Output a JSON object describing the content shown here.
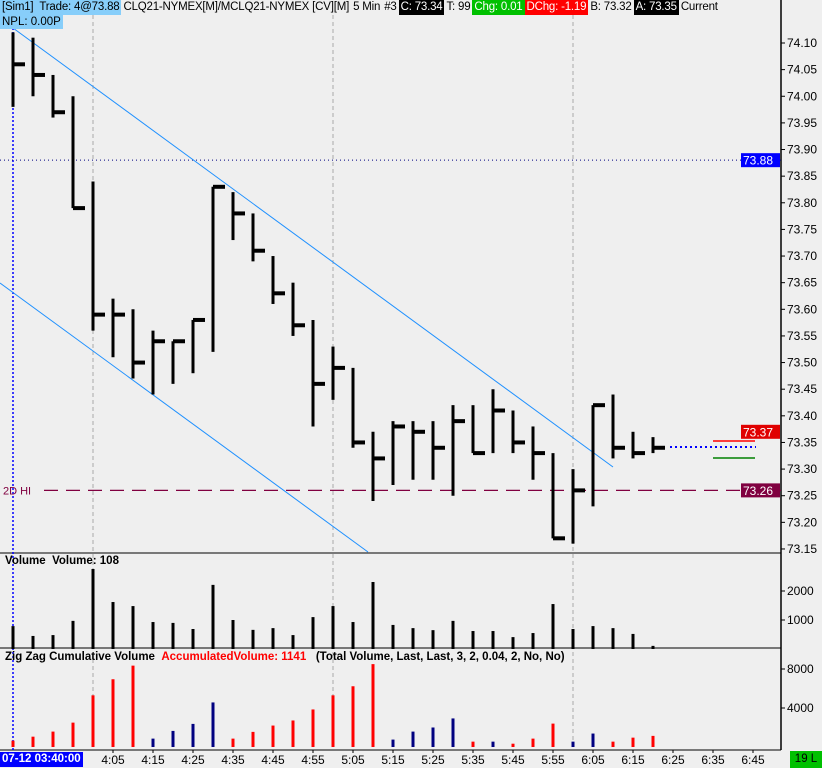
{
  "header": {
    "account": "[Sim1]",
    "trade": "Trade: 4@73.88",
    "symbol": "CLQ21-NYMEX[M]/MCLQ21-NYMEX [CV][M]",
    "interval": "5 Min",
    "bar_number": "#3",
    "close": "C: 73.34",
    "ticks": "T: 99",
    "change": "Chg: 0.01",
    "daily_change": "DChg: -1.19",
    "bid": "B: 73.32",
    "ask": "A: 73.35",
    "current": "Current",
    "npl": "NPL: 0.00P"
  },
  "colors": {
    "background": "#efefef",
    "bars": "#000000",
    "trendline": "#1e90ff",
    "zigzag_up": "#ff0000",
    "zigzag_down": "#000080",
    "accent_blue": "#87cefa"
  },
  "price_markers": [
    {
      "value": "73.88",
      "color": "#0000ff"
    },
    {
      "value": "73.37",
      "color": "#e00000"
    },
    {
      "value": "73.26",
      "color": "#800040",
      "line_label": "2D HI"
    }
  ],
  "volume_panel": {
    "title": "Volume",
    "value_label": "Volume: 108"
  },
  "zigzag_panel": {
    "title": "Zig Zag Cumulative Volume",
    "value_label": "AccumulatedVolume: 1141",
    "params": "(Total Volume, Last, Last, 3, 2, 0.04, 2, No, No)"
  },
  "time_axis": {
    "start_label": "07-12 03:40:00",
    "ticks": [
      "4:05",
      "4:15",
      "4:25",
      "4:35",
      "4:45",
      "4:55",
      "5:05",
      "5:15",
      "5:25",
      "5:35",
      "5:45",
      "5:55",
      "6:05",
      "6:15",
      "6:25",
      "6:35",
      "6:45"
    ]
  },
  "status_badge": "19 L",
  "chart_data": [
    {
      "type": "bar",
      "style": "HLC",
      "title": "CLQ21-NYMEX[M]/MCLQ21-NYMEX [CV][M]",
      "categories": [
        "3:40",
        "3:45",
        "3:50",
        "3:55",
        "4:00",
        "4:05",
        "4:10",
        "4:15",
        "4:20",
        "4:25",
        "4:30",
        "4:35",
        "4:40",
        "4:45",
        "4:50",
        "4:55",
        "5:00",
        "5:05",
        "5:10",
        "5:15",
        "5:20",
        "5:25",
        "5:30",
        "5:35",
        "5:40",
        "5:45",
        "5:50",
        "5:55",
        "6:00",
        "6:05",
        "6:10",
        "6:15",
        "6:20"
      ],
      "high": [
        74.12,
        74.11,
        74.04,
        74.0,
        73.84,
        73.62,
        73.6,
        73.56,
        73.54,
        73.58,
        73.83,
        73.82,
        73.78,
        73.7,
        73.65,
        73.58,
        73.53,
        73.49,
        73.37,
        73.39,
        73.39,
        73.39,
        73.42,
        73.42,
        73.45,
        73.41,
        73.38,
        73.33,
        73.3,
        73.42,
        73.44,
        73.37,
        73.36
      ],
      "low": [
        73.98,
        74.0,
        73.96,
        73.79,
        73.56,
        73.51,
        73.47,
        73.44,
        73.46,
        73.48,
        73.52,
        73.73,
        73.69,
        73.61,
        73.55,
        73.38,
        73.43,
        73.34,
        73.24,
        73.27,
        73.28,
        73.28,
        73.25,
        73.33,
        73.33,
        73.33,
        73.28,
        73.17,
        73.16,
        73.23,
        73.32,
        73.32,
        73.33
      ],
      "close": [
        74.06,
        74.04,
        73.97,
        73.79,
        73.59,
        73.59,
        73.5,
        73.54,
        73.54,
        73.58,
        73.83,
        73.78,
        73.71,
        73.63,
        73.57,
        73.46,
        73.49,
        73.35,
        73.32,
        73.38,
        73.37,
        73.34,
        73.39,
        73.33,
        73.41,
        73.35,
        73.33,
        73.17,
        73.26,
        73.42,
        73.34,
        73.33,
        73.34
      ],
      "ylim": [
        73.13,
        74.13
      ],
      "yticks": [
        "74.10",
        "74.05",
        "74.00",
        "73.95",
        "73.90",
        "73.85",
        "73.80",
        "73.75",
        "73.70",
        "73.65",
        "73.60",
        "73.55",
        "73.50",
        "73.45",
        "73.40",
        "73.35",
        "73.30",
        "73.25",
        "73.20",
        "73.15"
      ],
      "trendlines": [
        {
          "from": [
            "3:40",
            74.125
          ],
          "to": [
            "6:10",
            73.3
          ]
        },
        {
          "from": [
            "3:35",
            73.64
          ],
          "to": [
            "5:05",
            73.14
          ]
        }
      ],
      "horizontal_lines": [
        {
          "value": 73.88,
          "style": "dotted",
          "color": "#000080"
        },
        {
          "value": 73.26,
          "style": "dashed",
          "color": "#800040",
          "label": "2D HI"
        }
      ]
    },
    {
      "type": "bar",
      "title": "Volume",
      "categories": "same as price",
      "values": [
        790,
        450,
        480,
        970,
        2760,
        1620,
        1480,
        930,
        900,
        690,
        2210,
        1000,
        660,
        720,
        480,
        1100,
        1480,
        930,
        2310,
        830,
        720,
        650,
        970,
        620,
        620,
        410,
        550,
        1550,
        690,
        790,
        720,
        520,
        108
      ],
      "yticks": [
        "2000",
        "1000"
      ],
      "ylim": [
        0,
        3000
      ]
    },
    {
      "type": "bar",
      "title": "Zig Zag Cumulative Volume",
      "categories": "same as price",
      "values": [
        650,
        1060,
        1580,
        2500,
        5300,
        6950,
        8350,
        860,
        1650,
        2370,
        4570,
        860,
        1550,
        2200,
        2720,
        3850,
        5300,
        6230,
        8500,
        760,
        1580,
        2000,
        2930,
        550,
        550,
        340,
        860,
        2400,
        550,
        1380,
        550,
        960,
        1141
      ],
      "direction": [
        "up",
        "up",
        "up",
        "up",
        "up",
        "up",
        "up",
        "down",
        "down",
        "down",
        "down",
        "up",
        "up",
        "up",
        "up",
        "up",
        "up",
        "up",
        "up",
        "down",
        "down",
        "down",
        "down",
        "up",
        "down",
        "up",
        "up",
        "up",
        "down",
        "down",
        "up",
        "up",
        "up"
      ],
      "yticks": [
        "8000",
        "4000"
      ],
      "ylim": [
        0,
        9500
      ]
    }
  ]
}
